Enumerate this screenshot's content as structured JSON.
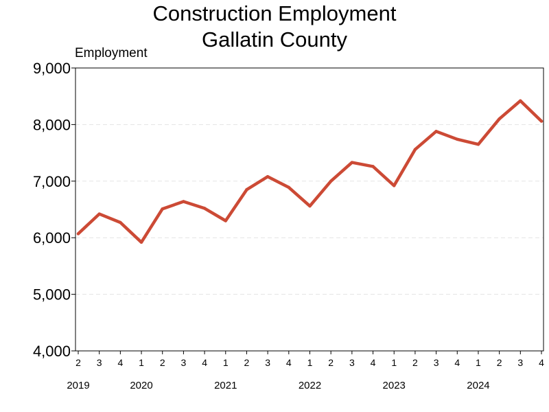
{
  "chart_data": {
    "type": "line",
    "title": "Construction Employment",
    "subtitle": "Gallatin County",
    "ylabel": "Employment",
    "ylim": [
      4000,
      9000
    ],
    "yticks": [
      {
        "value": 4000,
        "label": "4,000"
      },
      {
        "value": 5000,
        "label": "5,000"
      },
      {
        "value": 6000,
        "label": "6,000"
      },
      {
        "value": 7000,
        "label": "7,000"
      },
      {
        "value": 8000,
        "label": "8,000"
      },
      {
        "value": 9000,
        "label": "9,000"
      }
    ],
    "grid": "horizontal dashed",
    "line_color": "#cc4a35",
    "x": [
      "2",
      "3",
      "4",
      "1",
      "2",
      "3",
      "4",
      "1",
      "2",
      "3",
      "4",
      "1",
      "2",
      "3",
      "4",
      "1",
      "2",
      "3",
      "4",
      "1",
      "2",
      "3",
      "4"
    ],
    "years": [
      {
        "label": "2019",
        "start_index": 0
      },
      {
        "label": "2020",
        "start_index": 3
      },
      {
        "label": "2021",
        "start_index": 7
      },
      {
        "label": "2022",
        "start_index": 11
      },
      {
        "label": "2023",
        "start_index": 15
      },
      {
        "label": "2024",
        "start_index": 19
      }
    ],
    "series": [
      {
        "values": [
          6070,
          6420,
          6270,
          5920,
          6510,
          6640,
          6520,
          6300,
          6850,
          7080,
          6890,
          6560,
          7000,
          7330,
          7260,
          6920,
          7560,
          7880,
          7740,
          7650,
          8100,
          8420,
          8060
        ]
      }
    ]
  }
}
